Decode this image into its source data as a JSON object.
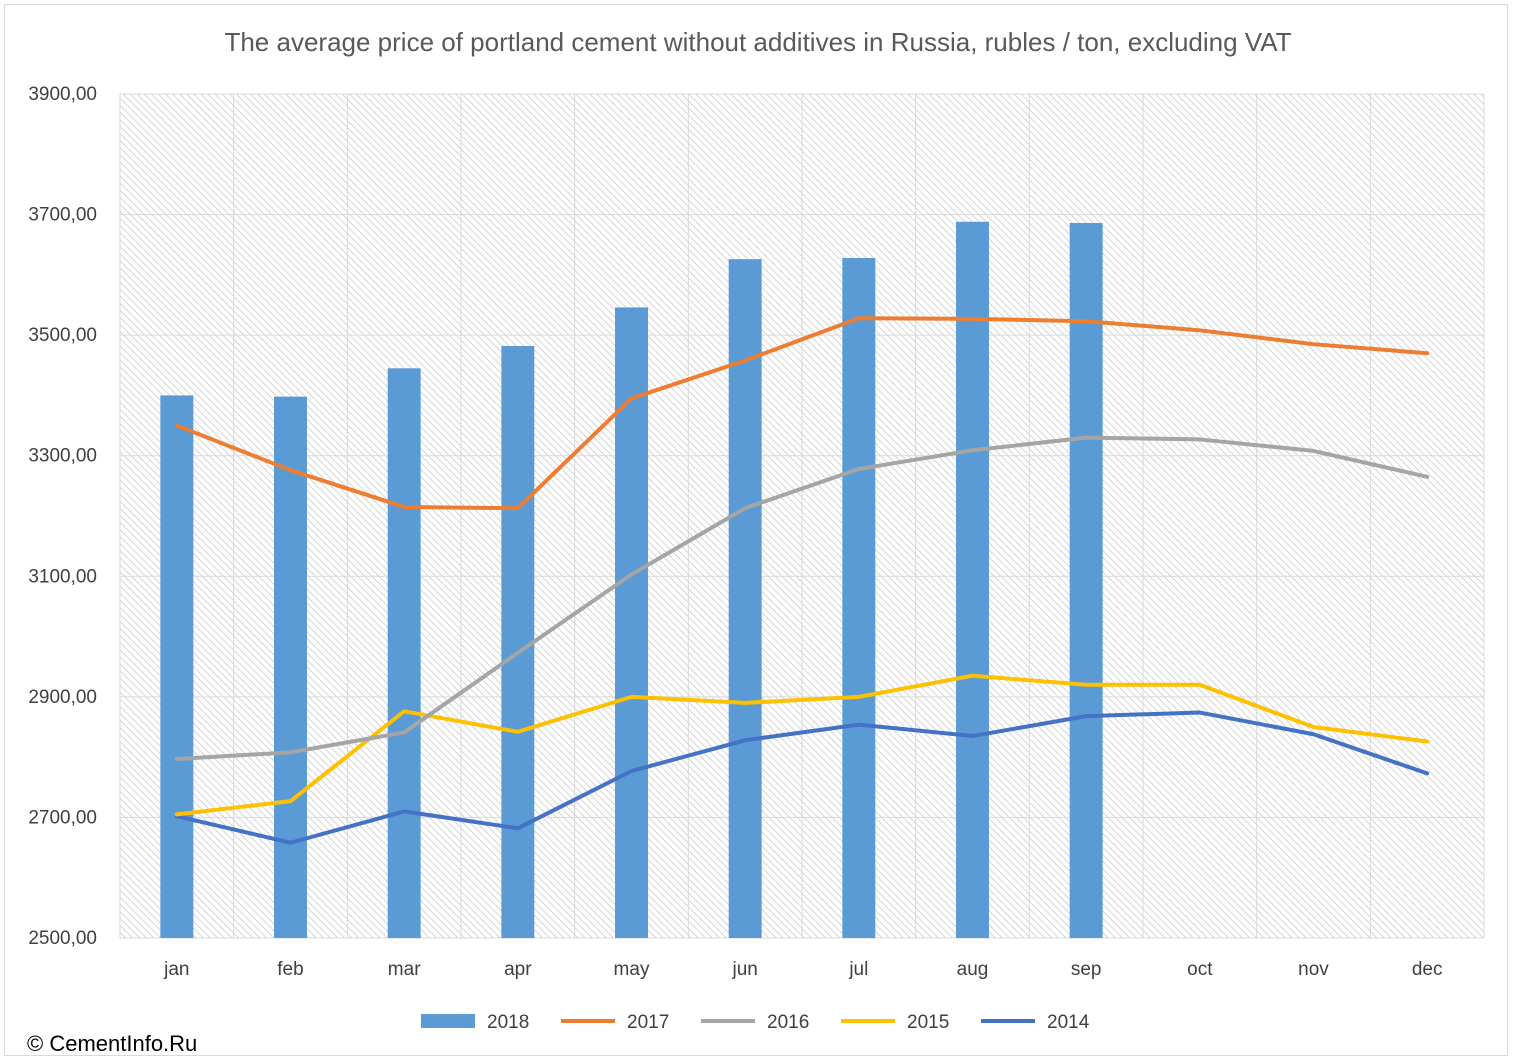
{
  "chart_data": {
    "type": "bar+line",
    "title": "The average price of portland cement without additives in Russia, rubles / ton, excluding VAT",
    "categories": [
      "jan",
      "feb",
      "mar",
      "apr",
      "may",
      "jun",
      "jul",
      "aug",
      "sep",
      "oct",
      "nov",
      "dec"
    ],
    "ylim": [
      2500,
      3900
    ],
    "yticks": [
      "2500,00",
      "2700,00",
      "2900,00",
      "3100,00",
      "3300,00",
      "3500,00",
      "3700,00",
      "3900,00"
    ],
    "ytick_values": [
      2500,
      2700,
      2900,
      3100,
      3300,
      3500,
      3700,
      3900
    ],
    "grid": true,
    "legend_position": "bottom",
    "series": [
      {
        "name": "2018",
        "kind": "bar",
        "color": "#5b9bd5",
        "values": [
          3400,
          3398,
          3445,
          3482,
          3546,
          3626,
          3628,
          3688,
          3686,
          null,
          null,
          null
        ]
      },
      {
        "name": "2017",
        "kind": "line",
        "color": "#ed7d31",
        "values": [
          3350,
          3276,
          3215,
          3213,
          3395,
          3458,
          3528,
          3527,
          3523,
          3508,
          3485,
          3470
        ]
      },
      {
        "name": "2016",
        "kind": "line",
        "color": "#a5a5a5",
        "values": [
          2797,
          2808,
          2841,
          2973,
          3103,
          3213,
          3278,
          3309,
          3330,
          3327,
          3308,
          3265
        ]
      },
      {
        "name": "2015",
        "kind": "line",
        "color": "#ffc000",
        "values": [
          2705,
          2727,
          2876,
          2842,
          2900,
          2890,
          2900,
          2935,
          2920,
          2920,
          2850,
          2826
        ]
      },
      {
        "name": "2014",
        "kind": "line",
        "color": "#4472c4",
        "values": [
          2702,
          2658,
          2710,
          2682,
          2777,
          2828,
          2854,
          2835,
          2868,
          2874,
          2838,
          2773
        ]
      }
    ]
  },
  "copyright": "© CementInfo.Ru"
}
